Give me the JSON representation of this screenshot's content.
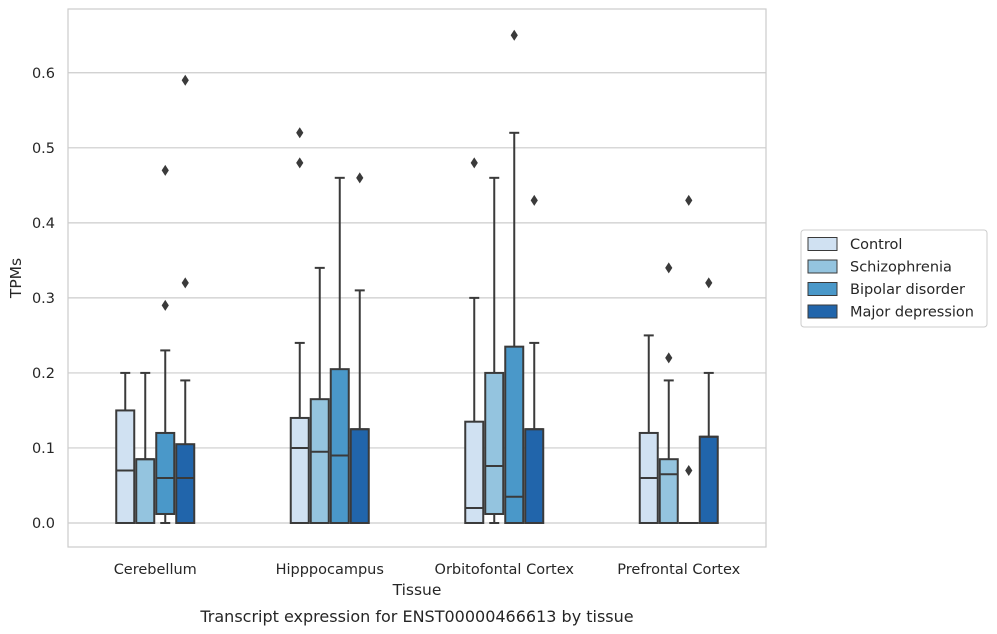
{
  "caption": "Transcript expression for ENST00000466613 by tissue",
  "chart_data": {
    "type": "box",
    "xlabel": "Tissue",
    "ylabel": "TPMs",
    "ylim": [
      -0.032,
      0.685
    ],
    "yticks": [
      0.0,
      0.1,
      0.2,
      0.3,
      0.4,
      0.5,
      0.6
    ],
    "ytick_labels": [
      "0.0",
      "0.1",
      "0.2",
      "0.3",
      "0.4",
      "0.5",
      "0.6"
    ],
    "grid": true,
    "legend_position": "right",
    "categories": [
      "Cerebellum",
      "Hipppocampus",
      "Orbitofontal Cortex",
      "Prefrontal Cortex"
    ],
    "series": [
      {
        "name": "Control",
        "color": "#d0e1f2",
        "boxes": [
          {
            "q1": 0.0,
            "median": 0.07,
            "q3": 0.15,
            "whisker_low": 0.0,
            "whisker_high": 0.2,
            "outliers": []
          },
          {
            "q1": 0.0,
            "median": 0.1,
            "q3": 0.14,
            "whisker_low": 0.0,
            "whisker_high": 0.24,
            "outliers": [
              0.48,
              0.52
            ]
          },
          {
            "q1": 0.0,
            "median": 0.02,
            "q3": 0.135,
            "whisker_low": 0.0,
            "whisker_high": 0.3,
            "outliers": [
              0.48
            ]
          },
          {
            "q1": 0.0,
            "median": 0.06,
            "q3": 0.12,
            "whisker_low": 0.0,
            "whisker_high": 0.25,
            "outliers": []
          }
        ]
      },
      {
        "name": "Schizophrenia",
        "color": "#94c4df",
        "boxes": [
          {
            "q1": 0.0,
            "median": 0.085,
            "q3": 0.085,
            "whisker_low": 0.0,
            "whisker_high": 0.2,
            "outliers": []
          },
          {
            "q1": 0.0,
            "median": 0.095,
            "q3": 0.165,
            "whisker_low": 0.0,
            "whisker_high": 0.34,
            "outliers": []
          },
          {
            "q1": 0.012,
            "median": 0.076,
            "q3": 0.2,
            "whisker_low": 0.0,
            "whisker_high": 0.46,
            "outliers": []
          },
          {
            "q1": 0.0,
            "median": 0.065,
            "q3": 0.085,
            "whisker_low": 0.0,
            "whisker_high": 0.19,
            "outliers": [
              0.22,
              0.34
            ]
          }
        ]
      },
      {
        "name": "Bipolar disorder",
        "color": "#4a98c9",
        "boxes": [
          {
            "q1": 0.012,
            "median": 0.06,
            "q3": 0.12,
            "whisker_low": 0.0,
            "whisker_high": 0.23,
            "outliers": [
              0.29,
              0.47
            ]
          },
          {
            "q1": 0.0,
            "median": 0.09,
            "q3": 0.205,
            "whisker_low": 0.0,
            "whisker_high": 0.46,
            "outliers": []
          },
          {
            "q1": 0.0,
            "median": 0.035,
            "q3": 0.235,
            "whisker_low": 0.0,
            "whisker_high": 0.52,
            "outliers": [
              0.65
            ]
          },
          {
            "q1": 0.0,
            "median": 0.0,
            "q3": 0.0,
            "whisker_low": 0.0,
            "whisker_high": 0.0,
            "outliers": [
              0.07,
              0.43
            ]
          }
        ]
      },
      {
        "name": "Major depression",
        "color": "#2165ab",
        "boxes": [
          {
            "q1": 0.0,
            "median": 0.06,
            "q3": 0.105,
            "whisker_low": 0.0,
            "whisker_high": 0.19,
            "outliers": [
              0.32,
              0.59
            ]
          },
          {
            "q1": 0.0,
            "median": 0.125,
            "q3": 0.125,
            "whisker_low": 0.0,
            "whisker_high": 0.31,
            "outliers": [
              0.46
            ]
          },
          {
            "q1": 0.0,
            "median": 0.125,
            "q3": 0.125,
            "whisker_low": 0.0,
            "whisker_high": 0.24,
            "outliers": [
              0.43
            ]
          },
          {
            "q1": 0.0,
            "median": 0.115,
            "q3": 0.115,
            "whisker_low": 0.0,
            "whisker_high": 0.2,
            "outliers": [
              0.32
            ]
          }
        ]
      }
    ]
  }
}
